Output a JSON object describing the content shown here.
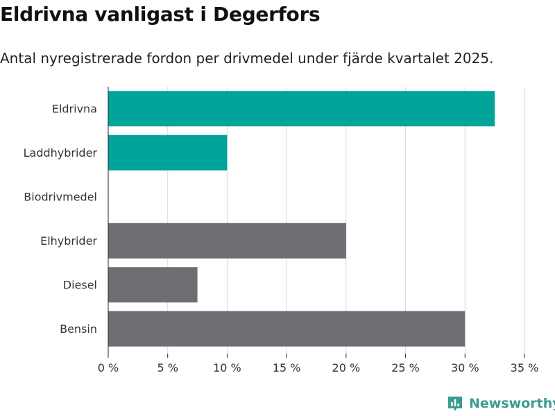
{
  "title": "Eldrivna vanligast i Degerfors",
  "subtitle": "Antal nyregistrerade fordon per drivmedel under fjärde kvartalet 2025.",
  "brand": {
    "name": "Newsworthy",
    "icon": "bar-chart-logo-icon",
    "color": "#3c9b92"
  },
  "chart_data": {
    "type": "bar",
    "orientation": "horizontal",
    "categories": [
      "Eldrivna",
      "Laddhybrider",
      "Biodrivmedel",
      "Elhybrider",
      "Diesel",
      "Bensin"
    ],
    "values": [
      32.5,
      10.0,
      0.0,
      20.0,
      7.5,
      30.0
    ],
    "colors": [
      "#00a49a",
      "#00a49a",
      "#00a49a",
      "#6e6e73",
      "#6e6e73",
      "#6e6e73"
    ],
    "xlim": [
      0,
      35
    ],
    "xticks": [
      0,
      5,
      10,
      15,
      20,
      25,
      30,
      35
    ],
    "xtick_labels": [
      "0 %",
      "5 %",
      "10 %",
      "15 %",
      "20 %",
      "25 %",
      "30 %",
      "35 %"
    ],
    "xlabel": "",
    "ylabel": "",
    "grid": true
  }
}
